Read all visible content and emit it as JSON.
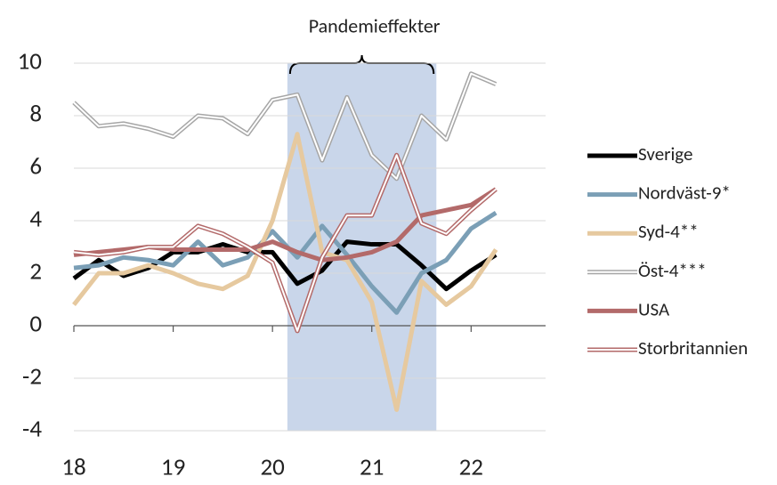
{
  "chart_data": {
    "type": "line",
    "annotations": [
      {
        "text": "Pandemieffekter",
        "x": [
          20.15,
          21.65
        ],
        "color": "#c9d6ea"
      }
    ],
    "x": [
      18,
      18.25,
      18.5,
      18.75,
      19,
      19.25,
      19.5,
      19.75,
      20,
      20.25,
      20.5,
      20.75,
      21,
      21.25,
      21.5,
      21.75,
      22,
      22.25
    ],
    "xlim": [
      18,
      22.75
    ],
    "xticks": [
      18,
      19,
      20,
      21,
      22
    ],
    "ylim": [
      -4,
      10
    ],
    "yticks": [
      -4,
      -2,
      0,
      2,
      4,
      6,
      8,
      10
    ],
    "grid": true,
    "legend": "right",
    "series": [
      {
        "name": "Sverige",
        "color": "#000000",
        "style": "solid",
        "values": [
          1.8,
          2.5,
          1.9,
          2.2,
          2.8,
          2.8,
          3.1,
          2.8,
          2.8,
          1.6,
          2.1,
          3.2,
          3.1,
          3.1,
          2.3,
          1.4,
          2.1,
          2.7
        ]
      },
      {
        "name": "Nordväst-9*",
        "color": "#7b9fb6",
        "style": "solid",
        "values": [
          2.2,
          2.3,
          2.6,
          2.5,
          2.3,
          3.2,
          2.3,
          2.6,
          3.6,
          2.6,
          3.8,
          2.7,
          1.5,
          0.5,
          2.0,
          2.5,
          3.7,
          4.3
        ]
      },
      {
        "name": "Syd-4**",
        "color": "#e6c99f",
        "style": "solid",
        "values": [
          0.8,
          2.0,
          2.0,
          2.3,
          2.0,
          1.6,
          1.4,
          1.9,
          4.0,
          7.3,
          2.8,
          2.5,
          0.9,
          -3.2,
          1.7,
          0.8,
          1.5,
          2.9
        ]
      },
      {
        "name": "Öst-4***",
        "color": "#a6a6a6",
        "style": "double",
        "values": [
          8.5,
          7.6,
          7.7,
          7.5,
          7.2,
          8.0,
          7.9,
          7.3,
          8.6,
          8.8,
          6.3,
          8.7,
          6.5,
          5.6,
          8.0,
          7.1,
          9.6,
          9.2
        ]
      },
      {
        "name": "USA",
        "color": "#b36a6a",
        "style": "solid",
        "values": [
          2.7,
          2.8,
          2.9,
          3.0,
          2.9,
          2.9,
          2.9,
          2.9,
          3.2,
          2.8,
          2.5,
          2.6,
          2.8,
          3.2,
          4.2,
          4.4,
          4.6,
          5.2
        ]
      },
      {
        "name": "Storbritannien",
        "color": "#b36a6a",
        "style": "double",
        "values": [
          2.8,
          2.7,
          2.8,
          3.0,
          3.0,
          3.8,
          3.5,
          3.0,
          2.4,
          -0.2,
          2.6,
          4.2,
          4.2,
          6.5,
          3.9,
          3.5,
          4.4,
          5.2
        ]
      }
    ]
  }
}
